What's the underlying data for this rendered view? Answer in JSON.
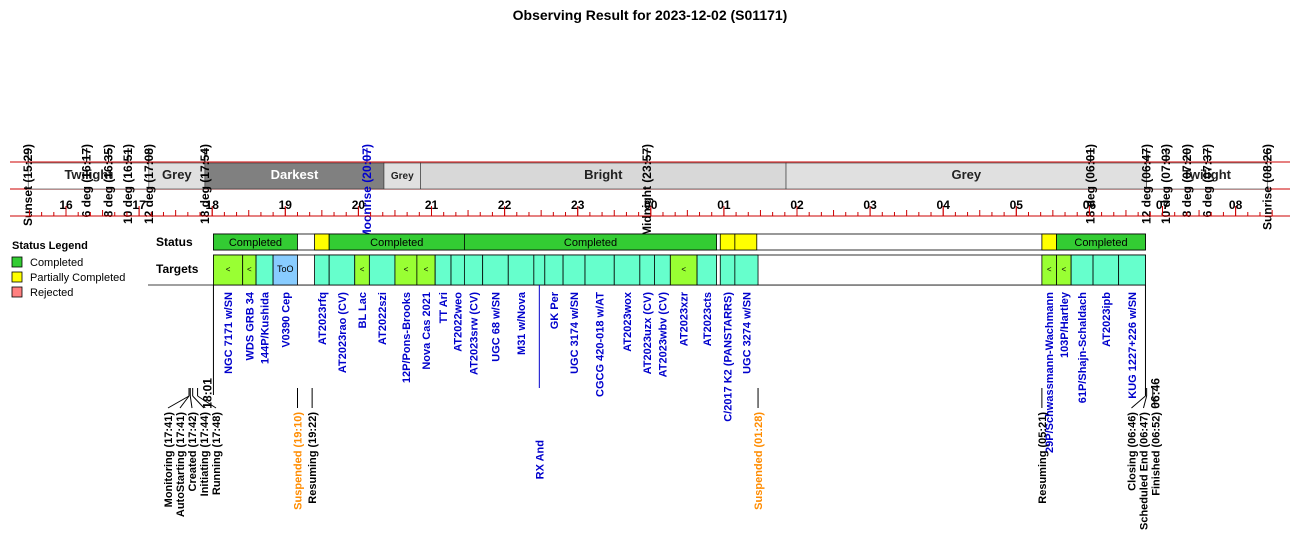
{
  "title": "Observing Result for 2023-12-02 (S01171)",
  "colors": {
    "completed": "#33cc33",
    "partial": "#ffff00",
    "rejected": "#ff8080",
    "target_default": "#66ffcc",
    "target_green": "#99ff33",
    "target_too": "#88ccff",
    "twilight": "#ffffff",
    "grey": "#e0e0e0",
    "darkest": "#808080",
    "bright": "#d8d8d8",
    "axis": "#cc0000",
    "moon": "#0000cc",
    "suspended": "#ff8c00",
    "target_label": "#0000cc"
  },
  "legend": {
    "title": "Status Legend",
    "items": [
      {
        "label": "Completed",
        "color": "#33cc33"
      },
      {
        "label": "Partially Completed",
        "color": "#ffff00"
      },
      {
        "label": "Rejected",
        "color": "#ff8080"
      }
    ]
  },
  "row_labels": {
    "status": "Status",
    "targets": "Targets"
  },
  "chart_data": {
    "type": "table",
    "title": "Observing Result for 2023-12-02 (S01171)",
    "hour_ticks": [
      "16",
      "17",
      "18",
      "19",
      "20",
      "21",
      "22",
      "23",
      "00",
      "01",
      "02",
      "03",
      "04",
      "05",
      "06",
      "07",
      "08"
    ],
    "hour_tick_values": [
      16,
      17,
      18,
      19,
      20,
      21,
      22,
      23,
      24,
      25,
      26,
      27,
      28,
      29,
      30,
      31,
      32
    ],
    "sky_events": [
      {
        "label": "Sunset (15:29)",
        "t": 15.483
      },
      {
        "label": "6 deg (16:17)",
        "t": 16.283
      },
      {
        "label": "8 deg (16:35)",
        "t": 16.583
      },
      {
        "label": "10 deg (16:51)",
        "t": 16.85
      },
      {
        "label": "12 deg (17:08)",
        "t": 17.133
      },
      {
        "label": "18 deg (17:54)",
        "t": 17.9
      },
      {
        "label": "Moonrise (20:07)",
        "t": 20.117,
        "moon": true
      },
      {
        "label": "Midnight (23:57)",
        "t": 23.95
      },
      {
        "label": "18 deg (06:01)",
        "t": 30.017
      },
      {
        "label": "12 deg (06:47)",
        "t": 30.783
      },
      {
        "label": "10 deg (07:03)",
        "t": 31.05
      },
      {
        "label": "8 deg (07:20)",
        "t": 31.333
      },
      {
        "label": "6 deg (07:37)",
        "t": 31.617
      },
      {
        "label": "Sunrise (08:26)",
        "t": 32.433
      }
    ],
    "sky_bands": [
      {
        "label": "Twilight",
        "start": 15.483,
        "end": 17.133,
        "kind": "twilight"
      },
      {
        "label": "Grey",
        "start": 17.133,
        "end": 17.9,
        "kind": "grey"
      },
      {
        "label": "Darkest",
        "start": 17.9,
        "end": 20.35,
        "kind": "darkest"
      },
      {
        "label": "Grey",
        "start": 20.35,
        "end": 20.85,
        "kind": "grey",
        "small": true
      },
      {
        "label": "Bright",
        "start": 20.85,
        "end": 25.85,
        "kind": "bright"
      },
      {
        "label": "Grey",
        "start": 25.85,
        "end": 30.783,
        "kind": "grey"
      },
      {
        "label": "Twilight",
        "start": 30.783,
        "end": 32.433,
        "kind": "twilight"
      }
    ],
    "status_blocks": [
      {
        "start": 18.017,
        "end": 19.167,
        "status": "completed",
        "label": "Completed"
      },
      {
        "start": 19.167,
        "end": 19.367,
        "status": "none",
        "label": ""
      },
      {
        "start": 19.4,
        "end": 19.6,
        "status": "partial",
        "label": ""
      },
      {
        "start": 19.6,
        "end": 21.45,
        "status": "completed",
        "label": "Completed"
      },
      {
        "start": 21.45,
        "end": 24.9,
        "status": "completed",
        "label": "Completed"
      },
      {
        "start": 24.95,
        "end": 25.15,
        "status": "partial",
        "label": ""
      },
      {
        "start": 25.15,
        "end": 25.45,
        "status": "partial",
        "label": ""
      },
      {
        "start": 29.35,
        "end": 29.55,
        "status": "partial",
        "label": ""
      },
      {
        "start": 29.55,
        "end": 30.767,
        "status": "completed",
        "label": "Completed"
      }
    ],
    "targets": [
      {
        "name": "NGC 7171 w/SN",
        "start": 18.017,
        "end": 18.417,
        "kind": "green",
        "mark": "<"
      },
      {
        "name": "WDS GRB 34",
        "start": 18.417,
        "end": 18.6,
        "kind": "green",
        "mark": "<"
      },
      {
        "name": "144P/Kushida",
        "start": 18.6,
        "end": 18.833,
        "kind": "default"
      },
      {
        "name": "V0390 Cep",
        "start": 18.833,
        "end": 19.167,
        "kind": "too",
        "mark": "ToO"
      },
      {
        "name": "AT2023rfq",
        "start": 19.4,
        "end": 19.6,
        "kind": "default"
      },
      {
        "name": "AT2023rao (CV)",
        "start": 19.6,
        "end": 19.95,
        "kind": "default"
      },
      {
        "name": "BL Lac",
        "start": 19.95,
        "end": 20.15,
        "kind": "green",
        "mark": "<"
      },
      {
        "name": "AT2022szi",
        "start": 20.15,
        "end": 20.5,
        "kind": "default"
      },
      {
        "name": "12P/Pons-Brooks",
        "start": 20.5,
        "end": 20.8,
        "kind": "green",
        "mark": "<"
      },
      {
        "name": "Nova Cas 2021",
        "start": 20.8,
        "end": 21.05,
        "kind": "green",
        "mark": "<"
      },
      {
        "name": "TT Ari",
        "start": 21.05,
        "end": 21.267,
        "kind": "default"
      },
      {
        "name": "AT2022weo",
        "start": 21.267,
        "end": 21.45,
        "kind": "default"
      },
      {
        "name": "AT2023srw (CV)",
        "start": 21.45,
        "end": 21.7,
        "kind": "default"
      },
      {
        "name": "UGC 68 w/SN",
        "start": 21.7,
        "end": 22.05,
        "kind": "default"
      },
      {
        "name": "M31 w/Nova",
        "start": 22.05,
        "end": 22.4,
        "kind": "default"
      },
      {
        "name": "RX And",
        "start": 22.4,
        "end": 22.55,
        "kind": "default",
        "low": true
      },
      {
        "name": "GK Per",
        "start": 22.55,
        "end": 22.8,
        "kind": "default"
      },
      {
        "name": "UGC 3174 w/SN",
        "start": 22.8,
        "end": 23.1,
        "kind": "default"
      },
      {
        "name": "CGCG 420-018 w/AT",
        "start": 23.1,
        "end": 23.5,
        "kind": "default"
      },
      {
        "name": "AT2023wox",
        "start": 23.5,
        "end": 23.85,
        "kind": "default"
      },
      {
        "name": "AT2023uzx (CV)",
        "start": 23.85,
        "end": 24.05,
        "kind": "default"
      },
      {
        "name": "AT2023wbv (CV)",
        "start": 24.05,
        "end": 24.267,
        "kind": "default"
      },
      {
        "name": "AT2023xzr",
        "start": 24.267,
        "end": 24.633,
        "kind": "green",
        "mark": "<"
      },
      {
        "name": "AT2023cts",
        "start": 24.633,
        "end": 24.9,
        "kind": "default"
      },
      {
        "name": "C/2017 K2 (PANSTARRS)",
        "start": 24.95,
        "end": 25.15,
        "kind": "default"
      },
      {
        "name": "UGC 3274 w/SN",
        "start": 25.15,
        "end": 25.467,
        "kind": "default"
      },
      {
        "name": "29P/Schwassmann-Wachmann",
        "start": 29.35,
        "end": 29.55,
        "kind": "green",
        "mark": "<"
      },
      {
        "name": "103P/Hartley",
        "start": 29.55,
        "end": 29.75,
        "kind": "green",
        "mark": "<"
      },
      {
        "name": "61P/Shajn-Schaldach",
        "start": 29.75,
        "end": 30.05,
        "kind": "default"
      },
      {
        "name": "AT2023ipb",
        "start": 30.05,
        "end": 30.4,
        "kind": "default"
      },
      {
        "name": "KUG 1227+226 w/SN",
        "start": 30.4,
        "end": 30.767,
        "kind": "default"
      }
    ],
    "start_time_label": "18:01",
    "end_time_label": "06:46",
    "start_t": 18.017,
    "end_t": 30.767,
    "events": [
      {
        "label": "Monitoring (17:41)",
        "t": 17.683
      },
      {
        "label": "AutoStarting (17:41)",
        "t": 17.683
      },
      {
        "label": "Created (17:42)",
        "t": 17.7
      },
      {
        "label": "Initiating (17:44)",
        "t": 17.733
      },
      {
        "label": "Running (17:48)",
        "t": 17.8
      },
      {
        "label": "Suspended (19:10)",
        "t": 19.167,
        "kind": "suspended"
      },
      {
        "label": "Resuming (19:22)",
        "t": 19.367
      },
      {
        "label": "Suspended (01:28)",
        "t": 25.467,
        "kind": "suspended"
      },
      {
        "label": "Resuming (05:21)",
        "t": 29.35
      },
      {
        "label": "Closing (06:46)",
        "t": 30.767
      },
      {
        "label": "Scheduled End (06:47)",
        "t": 30.783
      },
      {
        "label": "Finished (06:52)",
        "t": 30.867
      }
    ]
  }
}
